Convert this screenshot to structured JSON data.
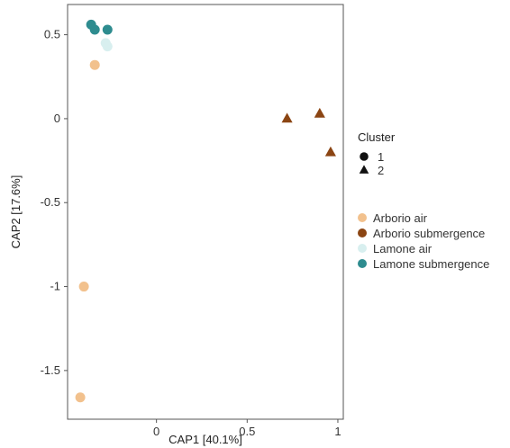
{
  "chart_data": {
    "type": "scatter",
    "xlabel": "CAP1 [40.1%]",
    "ylabel": "CAP2 [17.6%]",
    "xlim": [
      -0.49,
      1.03
    ],
    "ylim": [
      -1.79,
      0.68
    ],
    "x_ticks": [
      {
        "value": 0,
        "label": "0"
      },
      {
        "value": 0.5,
        "label": "0.5"
      },
      {
        "value": 1,
        "label": "1"
      }
    ],
    "y_ticks": [
      {
        "value": 0.5,
        "label": "0.5"
      },
      {
        "value": 0,
        "label": "0"
      },
      {
        "value": -0.5,
        "label": "-0.5"
      },
      {
        "value": -1,
        "label": "-1"
      },
      {
        "value": -1.5,
        "label": "-1.5"
      }
    ],
    "grid": false,
    "legend_placement": "right",
    "shape_legend": {
      "title": "Cluster",
      "items": [
        {
          "label": "1",
          "shape": "circle"
        },
        {
          "label": "2",
          "shape": "triangle"
        }
      ]
    },
    "series": [
      {
        "name": "Arborio air",
        "color": "#f2c18d",
        "points": [
          {
            "x": -0.34,
            "y": 0.32,
            "cluster": "1"
          },
          {
            "x": -0.4,
            "y": -1.0,
            "cluster": "1"
          },
          {
            "x": -0.42,
            "y": -1.66,
            "cluster": "1"
          }
        ]
      },
      {
        "name": "Arborio submergence",
        "color": "#8b4513",
        "points": [
          {
            "x": 0.72,
            "y": 0.0,
            "cluster": "2"
          },
          {
            "x": 0.9,
            "y": 0.03,
            "cluster": "2"
          },
          {
            "x": 0.96,
            "y": -0.2,
            "cluster": "2"
          }
        ]
      },
      {
        "name": "Lamone air",
        "color": "#d8efef",
        "points": [
          {
            "x": -0.27,
            "y": 0.43,
            "cluster": "1"
          },
          {
            "x": -0.28,
            "y": 0.45,
            "cluster": "1"
          }
        ]
      },
      {
        "name": "Lamone submergence",
        "color": "#2e8c8f",
        "points": [
          {
            "x": -0.36,
            "y": 0.56,
            "cluster": "1"
          },
          {
            "x": -0.34,
            "y": 0.53,
            "cluster": "1"
          },
          {
            "x": -0.27,
            "y": 0.53,
            "cluster": "1"
          }
        ]
      }
    ]
  }
}
